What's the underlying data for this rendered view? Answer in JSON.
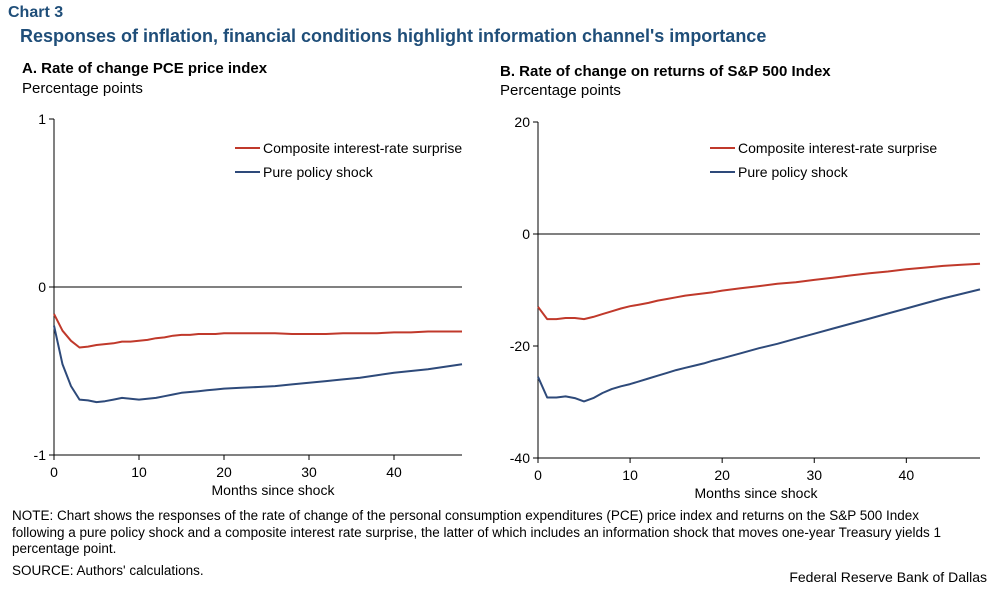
{
  "header": {
    "chart_label": "Chart 3",
    "title": "Responses of inflation, financial conditions highlight information channel's importance"
  },
  "footer": {
    "note": "NOTE: Chart shows the responses of the rate of change of the personal consumption expenditures (PCE) price index and returns on the S&P 500 Index following a pure policy shock and a composite interest rate surprise, the latter of which includes an information shock that moves one-year Treasury yields 1 percentage point.",
    "source": "SOURCE: Authors' calculations.",
    "credit": "Federal Reserve Bank of Dallas"
  },
  "colors": {
    "composite": "#c0392b",
    "pure": "#2e4a7a"
  },
  "chart_data": [
    {
      "type": "line",
      "title": "A. Rate of change PCE price index",
      "ylabel": "Percentage points",
      "xlabel": "Months since shock",
      "xlim": [
        0,
        48
      ],
      "ylim": [
        -1,
        1
      ],
      "xticks": [
        0,
        10,
        20,
        30,
        40
      ],
      "yticks": [
        -1,
        0,
        1
      ],
      "legend": "top-right",
      "series": [
        {
          "name": "Composite interest-rate surprise",
          "x": [
            0,
            1,
            2,
            3,
            4,
            5,
            6,
            7,
            8,
            9,
            10,
            11,
            12,
            13,
            14,
            15,
            16,
            17,
            18,
            19,
            20,
            22,
            24,
            26,
            28,
            30,
            32,
            34,
            36,
            38,
            40,
            42,
            44,
            46,
            48
          ],
          "y": [
            -0.16,
            -0.26,
            -0.32,
            -0.36,
            -0.355,
            -0.345,
            -0.34,
            -0.335,
            -0.325,
            -0.325,
            -0.32,
            -0.315,
            -0.305,
            -0.3,
            -0.29,
            -0.285,
            -0.285,
            -0.28,
            -0.28,
            -0.28,
            -0.275,
            -0.275,
            -0.275,
            -0.275,
            -0.28,
            -0.28,
            -0.28,
            -0.275,
            -0.275,
            -0.275,
            -0.27,
            -0.27,
            -0.265,
            -0.265,
            -0.265
          ]
        },
        {
          "name": "Pure policy shock",
          "x": [
            0,
            1,
            2,
            3,
            4,
            5,
            6,
            7,
            8,
            9,
            10,
            11,
            12,
            13,
            14,
            15,
            16,
            17,
            18,
            19,
            20,
            22,
            24,
            26,
            28,
            30,
            32,
            34,
            36,
            38,
            40,
            42,
            44,
            46,
            48
          ],
          "y": [
            -0.23,
            -0.46,
            -0.59,
            -0.67,
            -0.675,
            -0.685,
            -0.68,
            -0.67,
            -0.66,
            -0.665,
            -0.67,
            -0.665,
            -0.66,
            -0.65,
            -0.64,
            -0.63,
            -0.625,
            -0.62,
            -0.615,
            -0.61,
            -0.605,
            -0.6,
            -0.595,
            -0.59,
            -0.58,
            -0.57,
            -0.56,
            -0.55,
            -0.54,
            -0.525,
            -0.51,
            -0.5,
            -0.49,
            -0.475,
            -0.46
          ]
        }
      ]
    },
    {
      "type": "line",
      "title": "B. Rate of change on returns of S&P 500 Index",
      "ylabel": "Percentage points",
      "xlabel": "Months since shock",
      "xlim": [
        0,
        48
      ],
      "ylim": [
        -40,
        20
      ],
      "xticks": [
        0,
        10,
        20,
        30,
        40
      ],
      "yticks": [
        -40,
        -20,
        0,
        20
      ],
      "legend": "top-right",
      "series": [
        {
          "name": "Composite interest-rate surprise",
          "x": [
            0,
            1,
            2,
            3,
            4,
            5,
            6,
            7,
            8,
            9,
            10,
            11,
            12,
            13,
            14,
            15,
            16,
            17,
            18,
            19,
            20,
            22,
            24,
            26,
            28,
            30,
            32,
            34,
            36,
            38,
            40,
            42,
            44,
            46,
            48
          ],
          "y": [
            -13,
            -15.2,
            -15.2,
            -15.0,
            -15.0,
            -15.2,
            -14.8,
            -14.3,
            -13.8,
            -13.3,
            -12.9,
            -12.6,
            -12.3,
            -11.9,
            -11.6,
            -11.3,
            -11.0,
            -10.8,
            -10.6,
            -10.4,
            -10.1,
            -9.7,
            -9.3,
            -8.9,
            -8.6,
            -8.2,
            -7.8,
            -7.4,
            -7.0,
            -6.7,
            -6.3,
            -6.0,
            -5.7,
            -5.5,
            -5.3
          ]
        },
        {
          "name": "Pure policy shock",
          "x": [
            0,
            1,
            2,
            3,
            4,
            5,
            6,
            7,
            8,
            9,
            10,
            11,
            12,
            13,
            14,
            15,
            16,
            17,
            18,
            19,
            20,
            22,
            24,
            26,
            28,
            30,
            32,
            34,
            36,
            38,
            40,
            42,
            44,
            46,
            48
          ],
          "y": [
            -25.5,
            -29.2,
            -29.2,
            -29.0,
            -29.3,
            -29.9,
            -29.3,
            -28.4,
            -27.7,
            -27.2,
            -26.8,
            -26.3,
            -25.8,
            -25.3,
            -24.8,
            -24.3,
            -23.9,
            -23.5,
            -23.1,
            -22.6,
            -22.2,
            -21.3,
            -20.4,
            -19.6,
            -18.7,
            -17.8,
            -16.9,
            -16.0,
            -15.1,
            -14.2,
            -13.3,
            -12.4,
            -11.5,
            -10.7,
            -9.9
          ]
        }
      ]
    }
  ]
}
